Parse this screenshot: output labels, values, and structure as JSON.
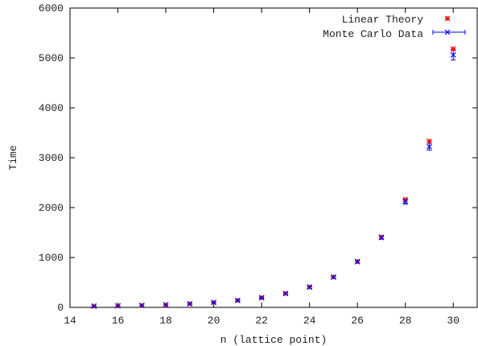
{
  "chart_data": {
    "type": "scatter",
    "xlabel": "n (lattice point)",
    "ylabel": "Time",
    "xlim": [
      14,
      31
    ],
    "ylim": [
      0,
      6000
    ],
    "x_ticks": [
      14,
      16,
      18,
      20,
      22,
      24,
      26,
      28,
      30
    ],
    "y_ticks": [
      0,
      1000,
      2000,
      3000,
      4000,
      5000,
      6000
    ],
    "grid": false,
    "legend_position": "top-right",
    "series": [
      {
        "name": "Linear Theory",
        "color": "#ff0000",
        "marker": "star",
        "x": [
          15,
          16,
          17,
          18,
          19,
          20,
          21,
          22,
          23,
          24,
          25,
          26,
          27,
          28,
          29,
          30
        ],
        "y": [
          25,
          32,
          40,
          52,
          72,
          100,
          140,
          195,
          280,
          410,
          610,
          920,
          1410,
          2160,
          3330,
          5180
        ]
      },
      {
        "name": "Monte Carlo Data",
        "color": "#0000ff",
        "marker": "cross",
        "x": [
          15,
          16,
          17,
          18,
          19,
          20,
          21,
          22,
          23,
          24,
          25,
          26,
          27,
          28,
          29,
          30
        ],
        "y": [
          25,
          32,
          40,
          52,
          72,
          98,
          138,
          192,
          276,
          405,
          605,
          915,
          1400,
          2120,
          3220,
          5060
        ],
        "yerr": [
          5,
          5,
          5,
          6,
          8,
          10,
          12,
          15,
          18,
          20,
          22,
          28,
          35,
          50,
          70,
          100
        ]
      }
    ]
  }
}
